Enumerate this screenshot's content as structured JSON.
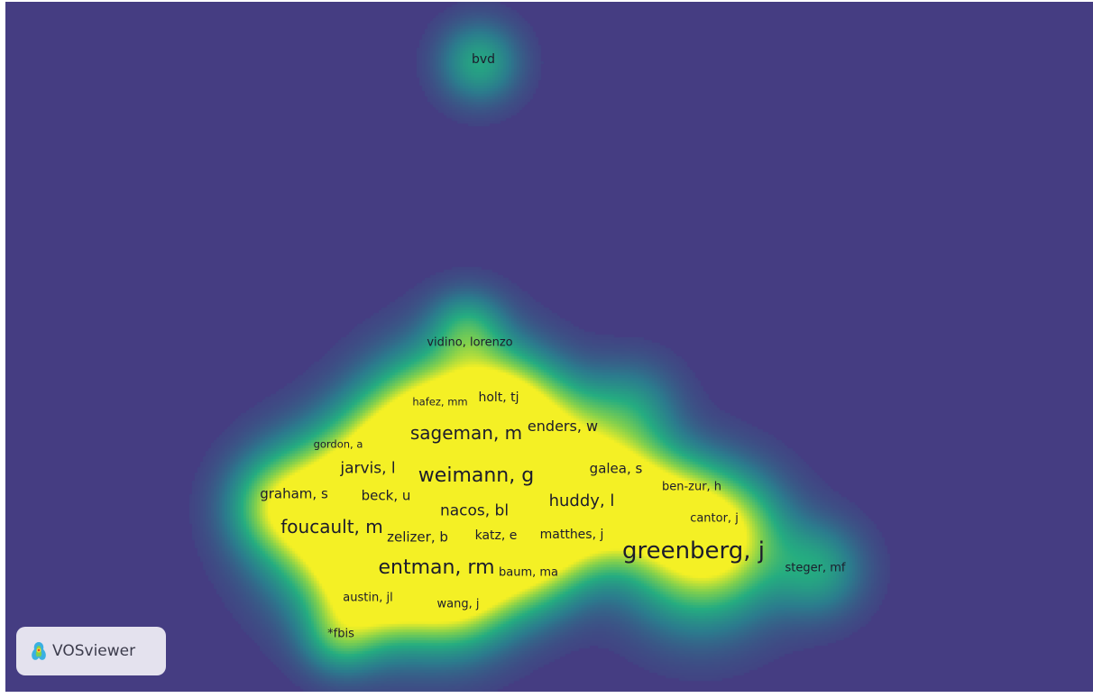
{
  "background_color": "#453d82",
  "colormap": [
    "#453d82",
    "#2c7c8e",
    "#25ad81",
    "#80d04f",
    "#f4f025"
  ],
  "brand": {
    "name": "VOSviewer",
    "icon": "vosviewer-logo-icon"
  },
  "labels": [
    {
      "id": "bvd",
      "text": "bvd"
    },
    {
      "id": "vidino",
      "text": "vidino, lorenzo"
    },
    {
      "id": "hafez",
      "text": "hafez, mm"
    },
    {
      "id": "holt",
      "text": "holt, tj"
    },
    {
      "id": "sageman",
      "text": "sageman, m"
    },
    {
      "id": "enders",
      "text": "enders, w"
    },
    {
      "id": "gordon",
      "text": "gordon, a"
    },
    {
      "id": "jarvis",
      "text": "jarvis, l"
    },
    {
      "id": "weimann",
      "text": "weimann, g"
    },
    {
      "id": "galea",
      "text": "galea, s"
    },
    {
      "id": "ben-zur",
      "text": "ben-zur, h"
    },
    {
      "id": "graham",
      "text": "graham, s"
    },
    {
      "id": "beck",
      "text": "beck, u"
    },
    {
      "id": "huddy",
      "text": "huddy, l"
    },
    {
      "id": "nacos",
      "text": "nacos, bl"
    },
    {
      "id": "cantor",
      "text": "cantor, j"
    },
    {
      "id": "foucault",
      "text": "foucault, m"
    },
    {
      "id": "zelizer",
      "text": "zelizer, b"
    },
    {
      "id": "katz",
      "text": "katz, e"
    },
    {
      "id": "matthes",
      "text": "matthes, j"
    },
    {
      "id": "greenberg",
      "text": "greenberg, j"
    },
    {
      "id": "entman",
      "text": "entman, rm"
    },
    {
      "id": "baum",
      "text": "baum, ma"
    },
    {
      "id": "steger",
      "text": "steger, mf"
    },
    {
      "id": "austin",
      "text": "austin, jl"
    },
    {
      "id": "wang",
      "text": "wang, j"
    },
    {
      "id": "fbis",
      "text": "*fbis"
    }
  ]
}
